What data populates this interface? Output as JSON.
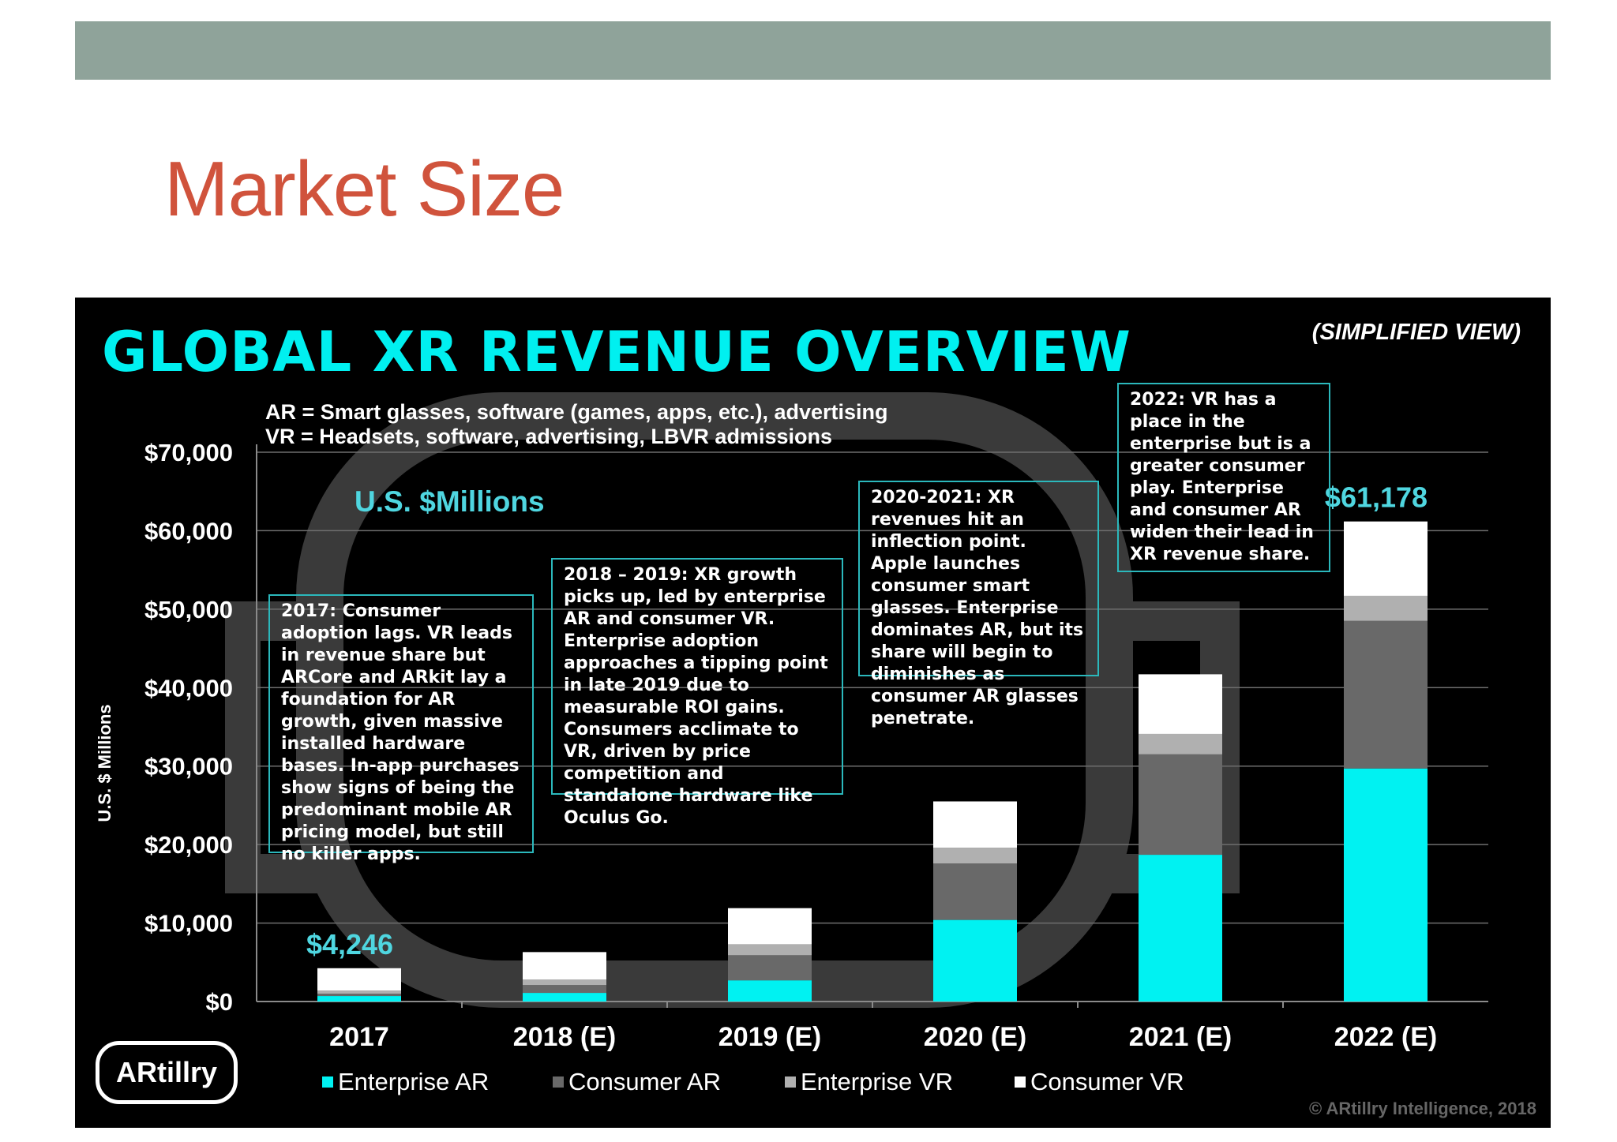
{
  "slide": {
    "title": "Market Size"
  },
  "panel": {
    "title": "GLOBAL XR REVENUE OVERVIEW",
    "view_tag": "(SIMPLIFIED VIEW)",
    "def_ar": "AR = Smart glasses, software (games, apps, etc.), advertising",
    "def_vr": "VR = Headsets, software, advertising, LBVR admissions",
    "units": "U.S. $Millions",
    "ylabel": "U.S. $ Millions",
    "logo": "ARtillry",
    "copyright": "© ARtillry Intelligence, 2018",
    "notes": [
      "2017: Consumer adoption lags. VR leads in revenue share but  ARCore and ARkit lay a foundation for AR growth, given massive installed hardware bases. In-app purchases show signs of being the predominant mobile AR pricing model, but still no killer apps.",
      "2018 – 2019: XR growth picks up, led by enterprise AR and consumer VR.  Enterprise adoption approaches a tipping point in late 2019 due to measurable ROI gains. Consumers acclimate to VR, driven by price competition and standalone hardware like Oculus Go.",
      "2020-2021: XR revenues hit an inflection point. Apple launches consumer smart glasses. Enterprise dominates AR, but its share will begin to diminishes as consumer AR glasses penetrate.",
      "2022: VR has a place in the enterprise but is a greater consumer play. Enterprise and consumer AR widen their lead in XR revenue share."
    ]
  },
  "chart_data": {
    "type": "bar",
    "stacked": true,
    "categories": [
      "2017",
      "2018 (E)",
      "2019 (E)",
      "2020 (E)",
      "2021 (E)",
      "2022 (E)"
    ],
    "series": [
      {
        "name": "Enterprise AR",
        "color": "#00f2f2",
        "values": [
          700,
          1100,
          2700,
          10400,
          18700,
          29700
        ]
      },
      {
        "name": "Consumer AR",
        "color": "#696969",
        "values": [
          300,
          1000,
          3200,
          7200,
          12800,
          18800
        ]
      },
      {
        "name": "Enterprise VR",
        "color": "#b0b0b0",
        "values": [
          400,
          700,
          1400,
          2000,
          2600,
          3200
        ]
      },
      {
        "name": "Consumer VR",
        "color": "#ffffff",
        "values": [
          2846,
          3500,
          4600,
          5900,
          7600,
          9478
        ]
      }
    ],
    "total_labels": [
      {
        "category": "2017",
        "text": "$4,246"
      },
      {
        "category": "2022 (E)",
        "text": "$61,178"
      }
    ],
    "yticks": [
      "$0",
      "$10,000",
      "$20,000",
      "$30,000",
      "$40,000",
      "$50,000",
      "$60,000",
      "$70,000"
    ],
    "ylim": [
      0,
      70000
    ],
    "ylabel": "U.S. $ Millions",
    "grid": true,
    "legend": "bottom"
  }
}
